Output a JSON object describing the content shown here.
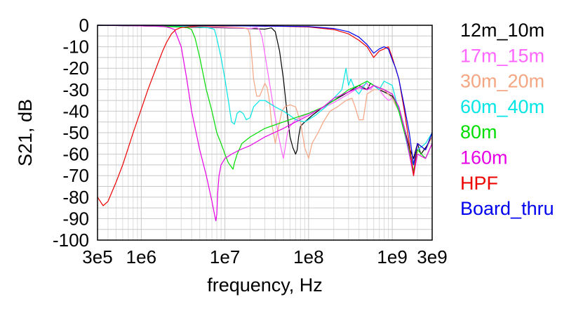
{
  "chart_data": {
    "type": "line",
    "title": "",
    "xlabel": "frequency, Hz",
    "ylabel": "S21, dB",
    "x_scale": "log",
    "xlim": [
      300000,
      3000000000
    ],
    "ylim": [
      -100,
      0
    ],
    "grid": true,
    "legend_position": "right",
    "x_ticks": [
      {
        "value": 300000,
        "label": "3e5"
      },
      {
        "value": 1000000,
        "label": "1e6"
      },
      {
        "value": 10000000,
        "label": "1e7"
      },
      {
        "value": 100000000,
        "label": "1e8"
      },
      {
        "value": 1000000000,
        "label": "1e9"
      },
      {
        "value": 3000000000,
        "label": "3e9"
      }
    ],
    "y_ticks": [
      {
        "value": 0,
        "label": "0"
      },
      {
        "value": -10,
        "label": "-10"
      },
      {
        "value": -20,
        "label": "-20"
      },
      {
        "value": -30,
        "label": "-30"
      },
      {
        "value": -40,
        "label": "-40"
      },
      {
        "value": -50,
        "label": "-50"
      },
      {
        "value": -60,
        "label": "-60"
      },
      {
        "value": -70,
        "label": "-70"
      },
      {
        "value": -80,
        "label": "-80"
      },
      {
        "value": -90,
        "label": "-90"
      },
      {
        "value": -100,
        "label": "-100"
      }
    ],
    "series": [
      {
        "name": "12m_10m",
        "color": "#000000",
        "x": [
          300000,
          1000000,
          3000000,
          10000000,
          20000000,
          30000000,
          36000000,
          40000000,
          45000000,
          50000000,
          55000000,
          60000000,
          65000000,
          70000000,
          73000000,
          76000000,
          80000000,
          90000000,
          110000000,
          150000000,
          200000000,
          300000000,
          400000000,
          450000000,
          500000000,
          550000000,
          600000000,
          700000000,
          800000000,
          900000000,
          1000000000,
          1200000000,
          1400000000,
          1600000000,
          1800000000,
          2000000000,
          2200000000,
          2500000000,
          3000000000
        ],
        "y": [
          0,
          -0.3,
          -0.8,
          -1.2,
          -1.5,
          -1.8,
          -1.2,
          -3,
          -12,
          -25,
          -40,
          -52,
          -57,
          -60,
          -58,
          -52,
          -47,
          -45,
          -42,
          -38,
          -35,
          -31,
          -28,
          -29,
          -30,
          -27,
          -28,
          -30,
          -31,
          -32,
          -33,
          -38,
          -48,
          -57,
          -62,
          -55,
          -60,
          -57,
          -52
        ]
      },
      {
        "name": "17m_15m",
        "color": "#ff66ff",
        "x": [
          300000,
          1000000,
          3000000,
          10000000,
          20000000,
          24000000,
          26000000,
          28000000,
          32000000,
          38000000,
          44000000,
          48000000,
          50000000,
          53000000,
          56000000,
          60000000,
          70000000,
          90000000,
          120000000,
          200000000,
          300000000,
          400000000,
          500000000,
          550000000,
          600000000,
          700000000,
          800000000,
          900000000,
          1000000000,
          1200000000,
          1400000000,
          1600000000,
          1800000000,
          2000000000,
          2500000000,
          3000000000
        ],
        "y": [
          0,
          -0.3,
          -0.6,
          -1,
          -1.5,
          -1.0,
          -2,
          -6,
          -20,
          -38,
          -52,
          -59,
          -62,
          -56,
          -50,
          -47,
          -44,
          -42,
          -40,
          -36,
          -32,
          -29,
          -27,
          -30,
          -28,
          -30,
          -33,
          -35,
          -34,
          -40,
          -50,
          -58,
          -65,
          -55,
          -58,
          -50
        ]
      },
      {
        "name": "30m_20m",
        "color": "#f4a582",
        "x": [
          300000,
          1000000,
          3000000,
          10000000,
          14000000,
          17000000,
          19000000,
          20000000,
          21000000,
          22000000,
          24000000,
          26000000,
          28000000,
          30000000,
          32000000,
          34000000,
          36000000,
          40000000,
          45000000,
          48000000,
          52000000,
          60000000,
          70000000,
          80000000,
          90000000,
          100000000,
          110000000,
          130000000,
          150000000,
          180000000,
          220000000,
          280000000,
          330000000,
          360000000,
          400000000,
          450000000,
          500000000,
          600000000,
          800000000,
          1000000000,
          1200000000,
          1400000000,
          1600000000,
          1800000000,
          2000000000,
          2500000000,
          3000000000
        ],
        "y": [
          0,
          -0.3,
          -0.5,
          -0.7,
          -1.0,
          -1.2,
          -2,
          -5,
          -15,
          -25,
          -33,
          -33,
          -30,
          -27,
          -29,
          -35,
          -45,
          -55,
          -45,
          -40,
          -38,
          -37,
          -38,
          -45,
          -57,
          -62,
          -55,
          -50,
          -45,
          -40,
          -38,
          -35,
          -34,
          -38,
          -44,
          -44,
          -32,
          -30,
          -30,
          -34,
          -40,
          -50,
          -58,
          -65,
          -55,
          -58,
          -52
        ]
      },
      {
        "name": "60m_40m",
        "color": "#00e5e5",
        "x": [
          300000,
          1000000,
          2000000,
          3000000,
          4000000,
          5000000,
          6000000,
          7000000,
          7500000,
          8000000,
          9000000,
          10000000,
          11000000,
          12000000,
          13000000,
          14000000,
          15000000,
          16500000,
          18000000,
          20000000,
          22000000,
          26000000,
          30000000,
          40000000,
          50000000,
          60000000,
          70000000,
          90000000,
          120000000,
          160000000,
          200000000,
          250000000,
          280000000,
          300000000,
          320000000,
          360000000,
          400000000,
          500000000,
          600000000,
          700000000,
          800000000,
          1000000000,
          1200000000,
          1400000000,
          1600000000,
          1800000000,
          2000000000,
          2500000000,
          3000000000
        ],
        "y": [
          0,
          -0.3,
          -0.4,
          -0.5,
          -0.6,
          -0.8,
          -1.0,
          -1.5,
          -2,
          -6,
          -15,
          -25,
          -35,
          -45,
          -46,
          -41,
          -40,
          -41,
          -44,
          -43,
          -38,
          -35,
          -35,
          -38,
          -40,
          -42,
          -44,
          -45,
          -42,
          -38,
          -34,
          -30,
          -20,
          -28,
          -25,
          -30,
          -32,
          -26,
          -28,
          -30,
          -26,
          -28,
          -40,
          -50,
          -60,
          -65,
          -58,
          -55,
          -50
        ]
      },
      {
        "name": "80m",
        "color": "#00dd00",
        "x": [
          300000,
          1000000,
          2000000,
          3000000,
          3300000,
          3600000,
          4000000,
          4400000,
          5000000,
          6000000,
          7000000,
          8000000,
          9000000,
          10000000,
          11000000,
          12000000,
          12500000,
          13000000,
          14000000,
          16000000,
          20000000,
          30000000,
          50000000,
          70000000,
          100000000,
          150000000,
          200000000,
          300000000,
          400000000,
          500000000,
          600000000,
          800000000,
          1000000000,
          1200000000,
          1400000000,
          1600000000,
          1800000000,
          2000000000,
          2500000000,
          3000000000
        ],
        "y": [
          0,
          -0.3,
          -0.5,
          -0.8,
          -1.0,
          -1.2,
          -2,
          -6,
          -15,
          -30,
          -40,
          -50,
          -55,
          -60,
          -64,
          -66,
          -67,
          -64,
          -60,
          -55,
          -52,
          -48,
          -45,
          -43,
          -41,
          -38,
          -35,
          -30,
          -28,
          -26,
          -28,
          -30,
          -32,
          -40,
          -50,
          -58,
          -68,
          -58,
          -62,
          -55
        ]
      },
      {
        "name": "160m",
        "color": "#e600e6",
        "x": [
          300000,
          1000000,
          1500000,
          1800000,
          2000000,
          2200000,
          2500000,
          3000000,
          3500000,
          4000000,
          5000000,
          6000000,
          7000000,
          7500000,
          7800000,
          8000000,
          8200000,
          8500000,
          9000000,
          10000000,
          12000000,
          15000000,
          20000000,
          30000000,
          50000000,
          70000000,
          100000000,
          150000000,
          200000000,
          300000000,
          400000000,
          500000000,
          600000000,
          800000000,
          1000000000,
          1200000000,
          1400000000,
          1600000000,
          1800000000,
          2000000000,
          2500000000,
          3000000000
        ],
        "y": [
          0,
          -0.3,
          -0.4,
          -0.6,
          -0.8,
          -1.2,
          -2,
          -10,
          -25,
          -40,
          -58,
          -70,
          -82,
          -88,
          -91,
          -88,
          -78,
          -70,
          -65,
          -62,
          -60,
          -58,
          -56,
          -52,
          -48,
          -45,
          -42,
          -38,
          -34,
          -31,
          -29,
          -30,
          -28,
          -30,
          -32,
          -38,
          -48,
          -60,
          -70,
          -60,
          -62,
          -55
        ]
      },
      {
        "name": "HPF",
        "color": "#ee0000",
        "x": [
          300000,
          350000,
          400000,
          500000,
          600000,
          700000,
          800000,
          1000000,
          1200000,
          1500000,
          1800000,
          2000000,
          2300000,
          2600000,
          3000000,
          4000000,
          5000000,
          7000000,
          10000000,
          20000000,
          50000000,
          100000000,
          200000000,
          300000000,
          400000000,
          500000000,
          600000000,
          700000000,
          800000000,
          900000000,
          1000000000,
          1200000000,
          1400000000,
          1600000000,
          1800000000,
          2000000000,
          2500000000,
          3000000000
        ],
        "y": [
          -80,
          -84,
          -82,
          -73,
          -65,
          -57,
          -50,
          -39,
          -30,
          -20,
          -12,
          -8,
          -4,
          -2,
          -1,
          -0.6,
          -0.4,
          -0.3,
          -0.2,
          -0.3,
          -0.5,
          -0.8,
          -2,
          -4,
          -7,
          -10,
          -15,
          -12,
          -11,
          -10,
          -15,
          -25,
          -40,
          -55,
          -70,
          -55,
          -58,
          -50
        ]
      },
      {
        "name": "Board_thru",
        "color": "#0000ee",
        "x": [
          300000,
          1000000,
          10000000,
          100000000,
          200000000,
          300000000,
          400000000,
          500000000,
          600000000,
          700000000,
          800000000,
          900000000,
          1000000000,
          1100000000,
          1200000000,
          1400000000,
          1600000000,
          1800000000,
          2000000000,
          2500000000,
          3000000000
        ],
        "y": [
          0,
          0,
          -0.2,
          -0.6,
          -1.5,
          -3,
          -5.5,
          -9,
          -13,
          -11,
          -10,
          -11,
          -16,
          -20,
          -25,
          -38,
          -50,
          -65,
          -55,
          -58,
          -50
        ]
      }
    ]
  }
}
